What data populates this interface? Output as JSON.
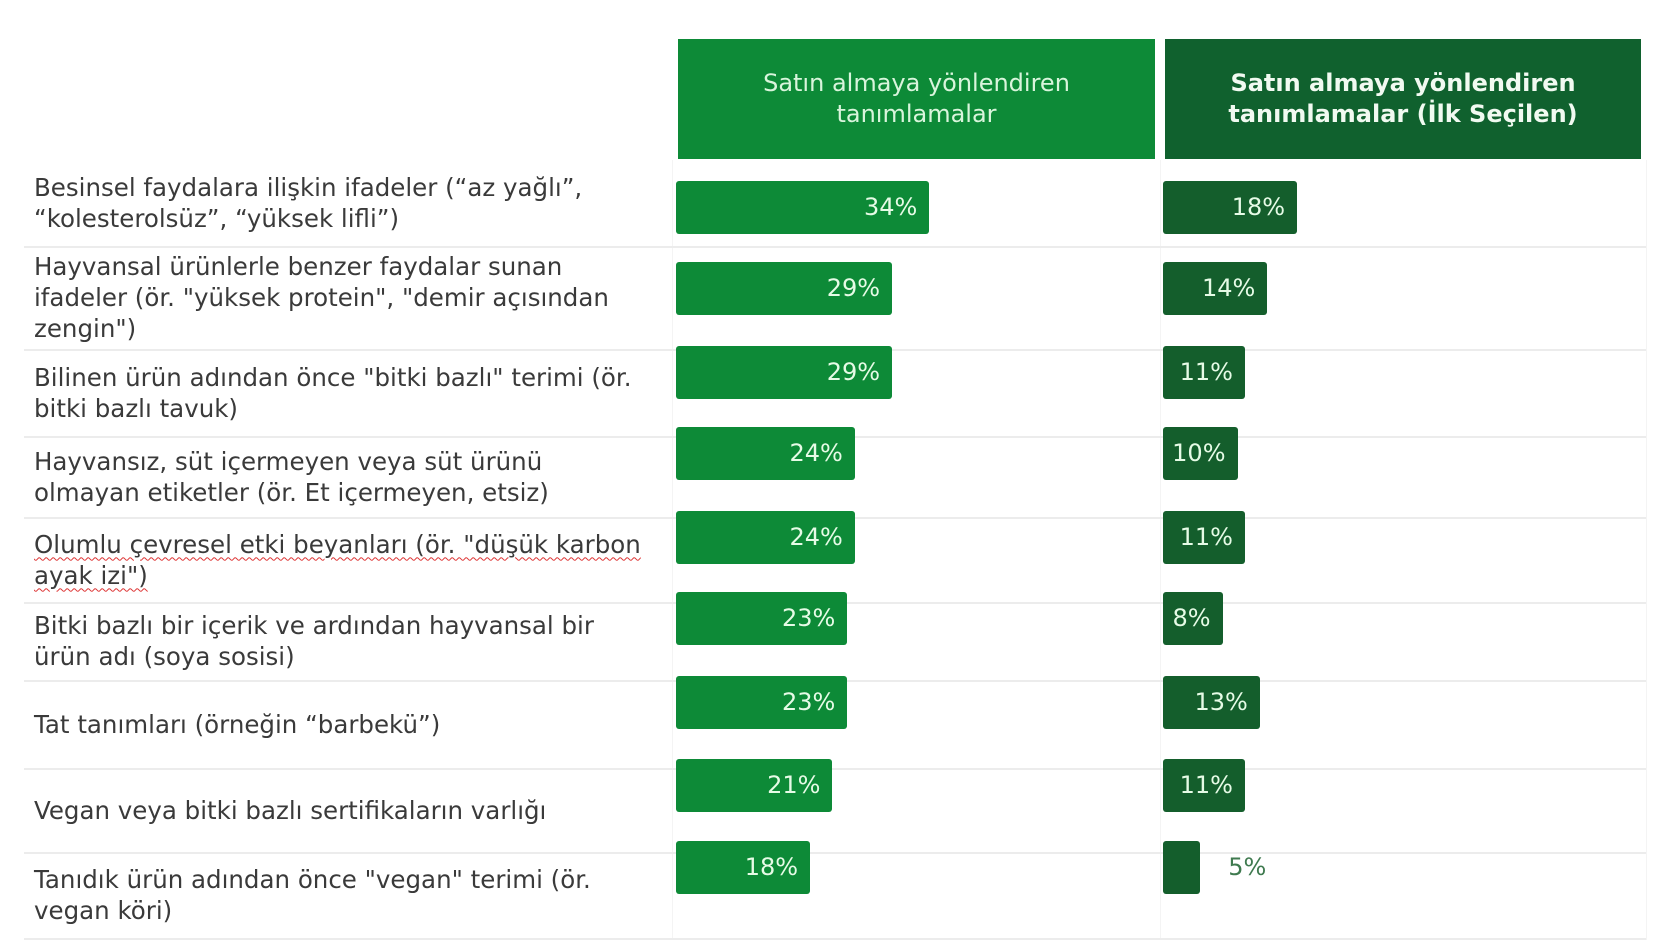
{
  "headers": {
    "left": "Satın almaya yönlendiren tanımlamalar",
    "right": "Satın almaya yönlendiren tanımlamalar (İlk Seçilen)"
  },
  "colors": {
    "left_bar": "#0d8a37",
    "right_bar": "#145e2c",
    "left_header": "#0d8a37",
    "right_header": "#10612e"
  },
  "chart_data": {
    "type": "bar",
    "orientation": "horizontal",
    "categories": [
      "Besinsel faydalara ilişkin ifadeler (“az yağlı”, “kolesterolsüz”, “yüksek lifli”)",
      "Hayvansal ürünlerle benzer faydalar sunan ifadeler (ör. \"yüksek protein\", \"demir açısından zengin\")",
      "Bilinen ürün adından önce \"bitki bazlı\" terimi (ör. bitki bazlı tavuk)",
      "Hayvansız, süt içermeyen veya süt ürünü olmayan etiketler (ör. Et içermeyen, etsiz)",
      "Olumlu çevresel etki beyanları (ör. \"düşük karbon ayak izi\")",
      "Bitki bazlı bir içerik ve ardından hayvansal bir ürün adı (soya sosisi)",
      "Tat tanımları (örneğin “barbekü”)",
      "Vegan veya bitki bazlı sertifikaların varlığı",
      "Tanıdık ürün adından önce \"vegan\" terimi (ör. vegan köri)"
    ],
    "series": [
      {
        "name": "Satın almaya yönlendiren tanımlamalar",
        "values": [
          34,
          29,
          29,
          24,
          24,
          23,
          23,
          21,
          18
        ],
        "labels": [
          "34%",
          "29%",
          "29%",
          "24%",
          "24%",
          "23%",
          "23%",
          "21%",
          "18%"
        ]
      },
      {
        "name": "Satın almaya yönlendiren tanımlamalar (İlk Seçilen)",
        "values": [
          18,
          14,
          11,
          10,
          11,
          8,
          13,
          11,
          5
        ],
        "labels": [
          "18%",
          "14%",
          "11%",
          "10%",
          "11%",
          "8%",
          "13%",
          "11%",
          "5%"
        ]
      }
    ],
    "unit": "%",
    "xlim": [
      0,
      60
    ]
  }
}
